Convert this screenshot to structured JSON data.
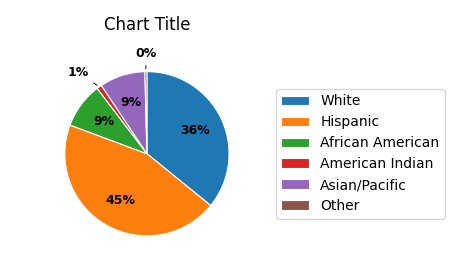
{
  "chart_data": {
    "type": "pie",
    "title": "Chart Title",
    "categories": [
      "White",
      "Hispanic",
      "African American",
      "American Indian",
      "Asian/Pacific",
      "Other"
    ],
    "values": [
      36,
      45,
      9,
      1,
      9,
      0.4
    ],
    "value_labels": [
      "36%",
      "45%",
      "9%",
      "1%",
      "9%",
      "0%"
    ],
    "data_labels": true,
    "legend": "center left"
  }
}
